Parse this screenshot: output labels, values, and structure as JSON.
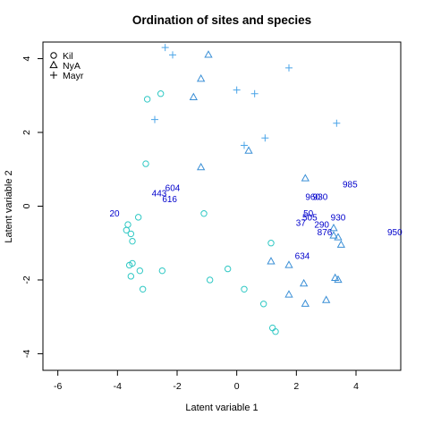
{
  "chart_data": {
    "type": "scatter",
    "title": "Ordination of sites and species",
    "xlabel": "Latent variable 1",
    "ylabel": "Latent variable 2",
    "xlim": [
      -6.5,
      5.5
    ],
    "ylim": [
      -4.45,
      4.45
    ],
    "xticks": [
      -6,
      -4,
      -2,
      0,
      2,
      4
    ],
    "yticks": [
      -4,
      -2,
      0,
      2,
      4
    ],
    "grid": false,
    "legend_position": "top-left",
    "legend": [
      {
        "label": "Kil",
        "marker": "circle"
      },
      {
        "label": "NyA",
        "marker": "triangle"
      },
      {
        "label": "Mayr",
        "marker": "plus"
      }
    ],
    "series": [
      {
        "name": "Kil",
        "marker": "circle",
        "color": "#2FC8C4",
        "points": [
          [
            -3.0,
            2.9
          ],
          [
            -2.55,
            3.05
          ],
          [
            -3.05,
            1.15
          ],
          [
            -3.3,
            -0.3
          ],
          [
            -1.1,
            -0.2
          ],
          [
            -3.65,
            -0.5
          ],
          [
            -3.7,
            -0.65
          ],
          [
            -3.55,
            -0.75
          ],
          [
            -3.5,
            -0.95
          ],
          [
            -3.6,
            -1.6
          ],
          [
            -3.5,
            -1.55
          ],
          [
            -3.55,
            -1.9
          ],
          [
            -2.5,
            -1.75
          ],
          [
            -3.25,
            -1.75
          ],
          [
            -3.15,
            -2.25
          ],
          [
            -0.3,
            -1.7
          ],
          [
            -0.9,
            -2.0
          ],
          [
            0.25,
            -2.25
          ],
          [
            1.15,
            -1.0
          ],
          [
            0.9,
            -2.65
          ],
          [
            1.2,
            -3.3
          ],
          [
            1.3,
            -3.4
          ]
        ]
      },
      {
        "name": "NyA",
        "marker": "triangle",
        "color": "#3A8FD6",
        "points": [
          [
            -0.95,
            4.1
          ],
          [
            -1.2,
            3.45
          ],
          [
            -1.45,
            2.95
          ],
          [
            -1.2,
            1.05
          ],
          [
            0.4,
            1.5
          ],
          [
            2.3,
            0.75
          ],
          [
            3.25,
            -0.6
          ],
          [
            3.25,
            -0.8
          ],
          [
            3.4,
            -0.85
          ],
          [
            3.5,
            -1.05
          ],
          [
            1.15,
            -1.5
          ],
          [
            1.75,
            -1.6
          ],
          [
            2.25,
            -2.1
          ],
          [
            1.75,
            -2.4
          ],
          [
            2.3,
            -2.65
          ],
          [
            3.0,
            -2.55
          ],
          [
            3.3,
            -1.95
          ],
          [
            3.4,
            -2.0
          ]
        ]
      },
      {
        "name": "Mayr",
        "marker": "plus",
        "color": "#4AA4E8",
        "points": [
          [
            -2.4,
            4.3
          ],
          [
            -2.15,
            4.1
          ],
          [
            1.75,
            3.75
          ],
          [
            0.0,
            3.15
          ],
          [
            0.6,
            3.05
          ],
          [
            -2.75,
            2.35
          ],
          [
            3.35,
            2.25
          ],
          [
            0.25,
            1.65
          ],
          [
            0.95,
            1.85
          ]
        ]
      }
    ],
    "site_labels": {
      "color": "#0000CC",
      "points": [
        {
          "label": "20",
          "x": -4.1,
          "y": -0.2
        },
        {
          "label": "604",
          "x": -2.15,
          "y": 0.5
        },
        {
          "label": "443",
          "x": -2.6,
          "y": 0.35
        },
        {
          "label": "616",
          "x": -2.25,
          "y": 0.2
        },
        {
          "label": "985",
          "x": 3.8,
          "y": 0.6
        },
        {
          "label": "960",
          "x": 2.55,
          "y": 0.25
        },
        {
          "label": "930",
          "x": 2.8,
          "y": 0.25
        },
        {
          "label": "50",
          "x": 2.4,
          "y": -0.2
        },
        {
          "label": "505",
          "x": 2.45,
          "y": -0.3
        },
        {
          "label": "37",
          "x": 2.15,
          "y": -0.45
        },
        {
          "label": "290",
          "x": 2.85,
          "y": -0.5
        },
        {
          "label": "930",
          "x": 3.4,
          "y": -0.3
        },
        {
          "label": "876",
          "x": 2.95,
          "y": -0.7
        },
        {
          "label": "950",
          "x": 5.3,
          "y": -0.7
        },
        {
          "label": "634",
          "x": 2.2,
          "y": -1.35
        }
      ]
    }
  }
}
